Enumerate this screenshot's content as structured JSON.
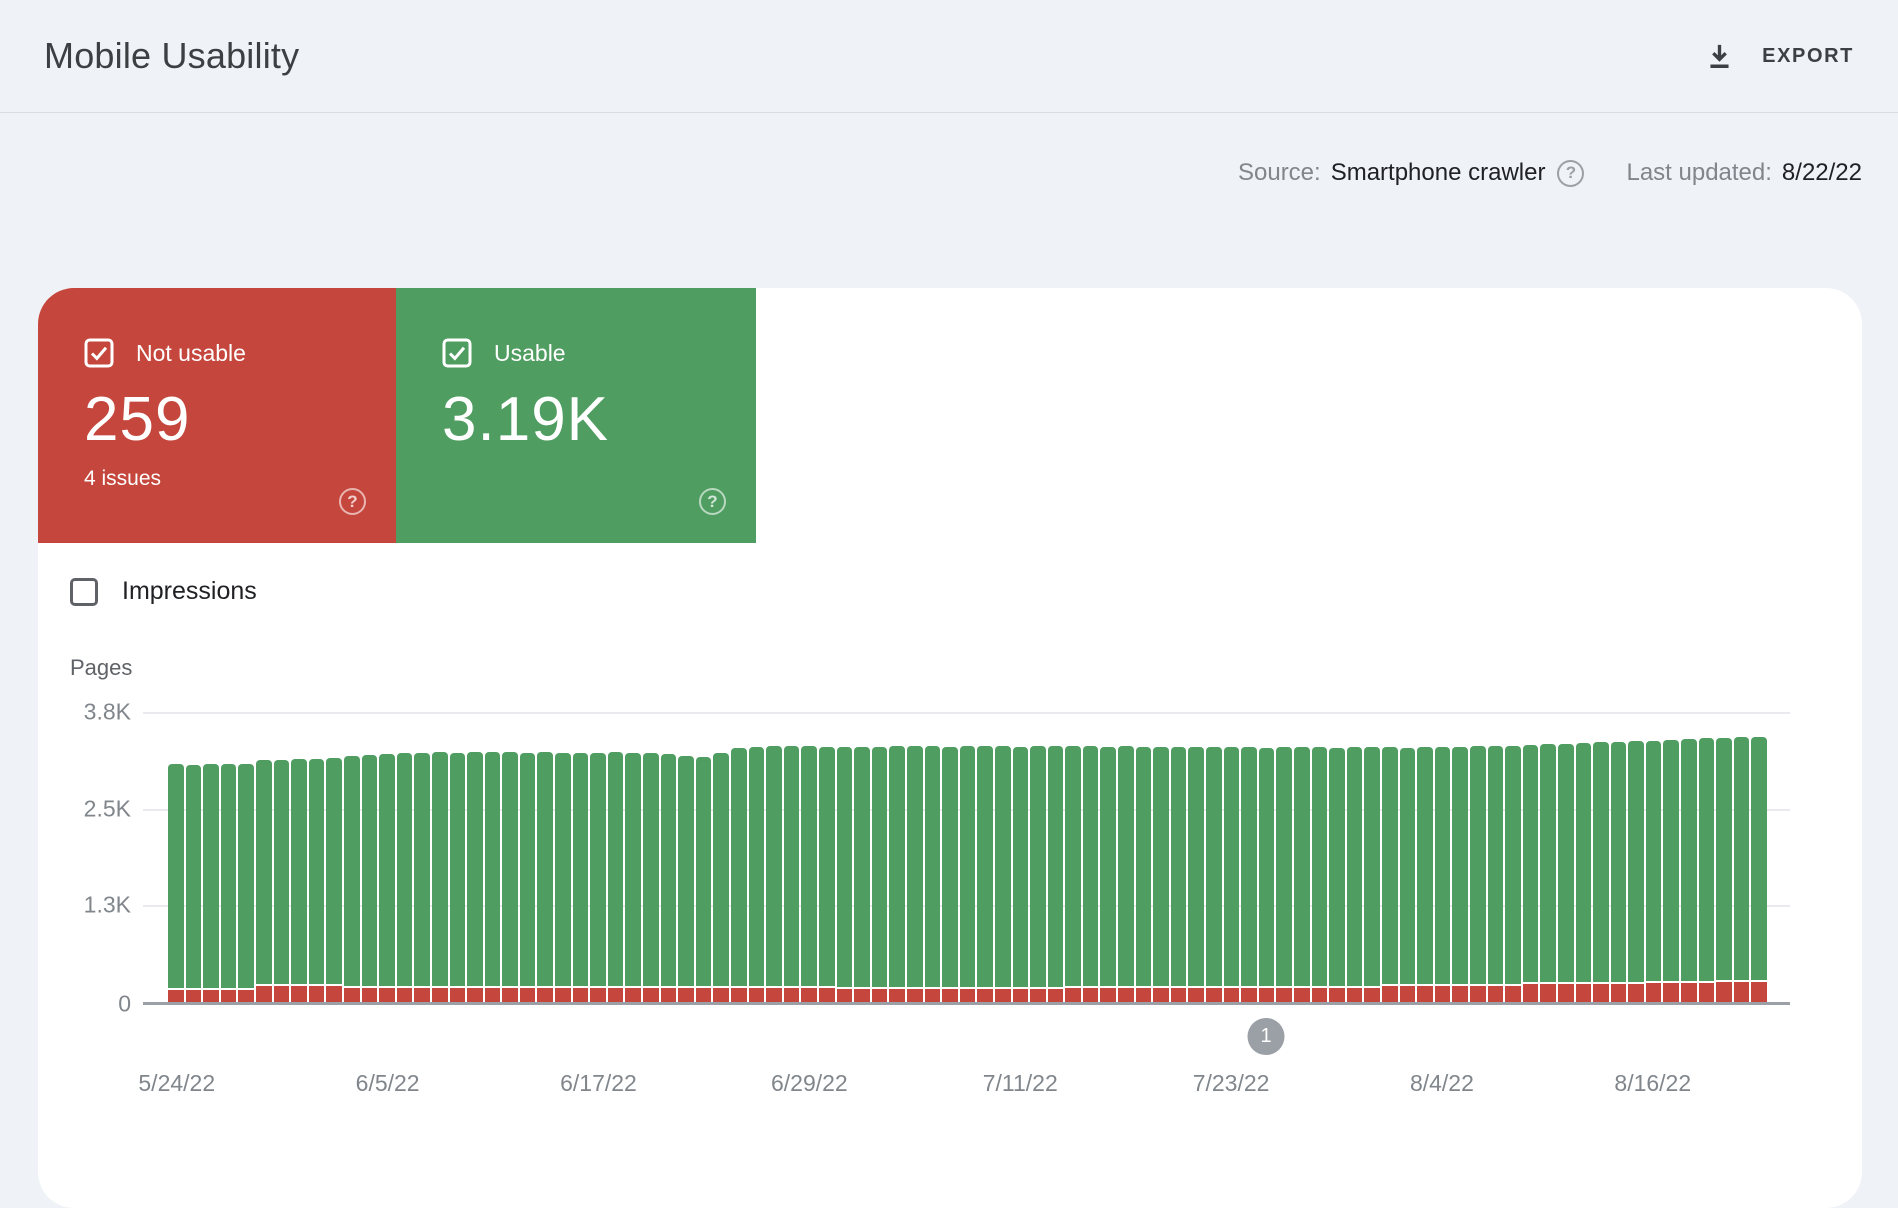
{
  "header": {
    "title": "Mobile Usability",
    "export_label": "EXPORT"
  },
  "meta": {
    "source_label": "Source:",
    "source_value": "Smartphone crawler",
    "source_help": "?",
    "updated_label": "Last updated:",
    "updated_value": "8/22/22"
  },
  "cards": {
    "not_usable": {
      "label": "Not usable",
      "value": "259",
      "issues": "4 issues",
      "help": "?",
      "color": "#c5463c"
    },
    "usable": {
      "label": "Usable",
      "value": "3.19K",
      "help": "?",
      "color": "#4f9d61"
    }
  },
  "controls": {
    "impressions_label": "Impressions"
  },
  "chart_data": {
    "type": "bar",
    "title": "Mobile usability pages over time",
    "ylabel": "Pages",
    "xlabel": "",
    "ymax": 3800,
    "ylim": [
      0,
      3800
    ],
    "grid": true,
    "stacked": true,
    "series_names": [
      "Usable",
      "Not usable"
    ],
    "colors": {
      "usable": "#4f9d61",
      "not_usable": "#c5463c"
    },
    "yticks": [
      {
        "value": 0,
        "label": "0"
      },
      {
        "value": 1267,
        "label": "1.3K"
      },
      {
        "value": 2533,
        "label": "2.5K"
      },
      {
        "value": 3800,
        "label": "3.8K"
      }
    ],
    "xtick_indices": [
      0,
      12,
      24,
      36,
      48,
      60,
      72,
      84
    ],
    "marker": {
      "label": "1",
      "day_index": 62
    },
    "days": [
      [
        "5/24/22",
        2930,
        160
      ],
      [
        "5/25/22",
        2925,
        160
      ],
      [
        "5/26/22",
        2930,
        160
      ],
      [
        "5/27/22",
        2935,
        160
      ],
      [
        "5/28/22",
        2930,
        160
      ],
      [
        "5/29/22",
        2925,
        215
      ],
      [
        "5/30/22",
        2935,
        215
      ],
      [
        "5/31/22",
        2940,
        215
      ],
      [
        "6/1/22",
        2950,
        215
      ],
      [
        "6/2/22",
        2960,
        215
      ],
      [
        "6/3/22",
        3020,
        180
      ],
      [
        "6/4/22",
        3030,
        180
      ],
      [
        "6/5/22",
        3040,
        180
      ],
      [
        "6/6/22",
        3055,
        180
      ],
      [
        "6/7/22",
        3060,
        180
      ],
      [
        "6/8/22",
        3065,
        180
      ],
      [
        "6/9/22",
        3060,
        180
      ],
      [
        "6/10/22",
        3060,
        185
      ],
      [
        "6/11/22",
        3065,
        185
      ],
      [
        "6/12/22",
        3060,
        185
      ],
      [
        "6/13/22",
        3055,
        185
      ],
      [
        "6/14/22",
        3065,
        180
      ],
      [
        "6/15/22",
        3060,
        180
      ],
      [
        "6/16/22",
        3055,
        180
      ],
      [
        "6/17/22",
        3060,
        180
      ],
      [
        "6/18/22",
        3065,
        180
      ],
      [
        "6/19/22",
        3060,
        180
      ],
      [
        "6/20/22",
        3055,
        180
      ],
      [
        "6/21/22",
        3050,
        180
      ],
      [
        "6/22/22",
        3015,
        180
      ],
      [
        "6/23/22",
        3010,
        180
      ],
      [
        "6/24/22",
        3060,
        180
      ],
      [
        "6/25/22",
        3120,
        180
      ],
      [
        "6/26/22",
        3140,
        180
      ],
      [
        "6/27/22",
        3145,
        180
      ],
      [
        "6/28/22",
        3150,
        180
      ],
      [
        "6/29/22",
        3145,
        180
      ],
      [
        "6/30/22",
        3140,
        180
      ],
      [
        "7/1/22",
        3145,
        175
      ],
      [
        "7/2/22",
        3140,
        175
      ],
      [
        "7/3/22",
        3145,
        175
      ],
      [
        "7/4/22",
        3150,
        175
      ],
      [
        "7/5/22",
        3155,
        175
      ],
      [
        "7/6/22",
        3150,
        175
      ],
      [
        "7/7/22",
        3145,
        175
      ],
      [
        "7/8/22",
        3150,
        175
      ],
      [
        "7/9/22",
        3155,
        175
      ],
      [
        "7/10/22",
        3150,
        175
      ],
      [
        "7/11/22",
        3145,
        175
      ],
      [
        "7/12/22",
        3150,
        175
      ],
      [
        "7/13/22",
        3155,
        175
      ],
      [
        "7/14/22",
        3140,
        190
      ],
      [
        "7/15/22",
        3135,
        190
      ],
      [
        "7/16/22",
        3130,
        190
      ],
      [
        "7/17/22",
        3135,
        190
      ],
      [
        "7/18/22",
        3130,
        190
      ],
      [
        "7/19/22",
        3125,
        190
      ],
      [
        "7/20/22",
        3120,
        190
      ],
      [
        "7/21/22",
        3125,
        190
      ],
      [
        "7/22/22",
        3130,
        190
      ],
      [
        "7/23/22",
        3125,
        190
      ],
      [
        "7/24/22",
        3120,
        190
      ],
      [
        "7/25/22",
        3115,
        190
      ],
      [
        "7/26/22",
        3120,
        190
      ],
      [
        "7/27/22",
        3125,
        190
      ],
      [
        "7/28/22",
        3120,
        190
      ],
      [
        "7/29/22",
        3115,
        190
      ],
      [
        "7/30/22",
        3120,
        190
      ],
      [
        "7/31/22",
        3125,
        190
      ],
      [
        "8/1/22",
        3100,
        210
      ],
      [
        "8/2/22",
        3095,
        210
      ],
      [
        "8/3/22",
        3100,
        210
      ],
      [
        "8/4/22",
        3105,
        210
      ],
      [
        "8/5/22",
        3110,
        210
      ],
      [
        "8/6/22",
        3115,
        210
      ],
      [
        "8/7/22",
        3120,
        210
      ],
      [
        "8/8/22",
        3125,
        210
      ],
      [
        "8/9/22",
        3115,
        230
      ],
      [
        "8/10/22",
        3120,
        230
      ],
      [
        "8/11/22",
        3125,
        230
      ],
      [
        "8/12/22",
        3135,
        230
      ],
      [
        "8/13/22",
        3145,
        230
      ],
      [
        "8/14/22",
        3155,
        230
      ],
      [
        "8/15/22",
        3160,
        230
      ],
      [
        "8/16/22",
        3155,
        245
      ],
      [
        "8/17/22",
        3165,
        245
      ],
      [
        "8/18/22",
        3175,
        245
      ],
      [
        "8/19/22",
        3185,
        245
      ],
      [
        "8/20/22",
        3176,
        259
      ],
      [
        "8/21/22",
        3186,
        259
      ],
      [
        "8/22/22",
        3190,
        259
      ]
    ]
  }
}
